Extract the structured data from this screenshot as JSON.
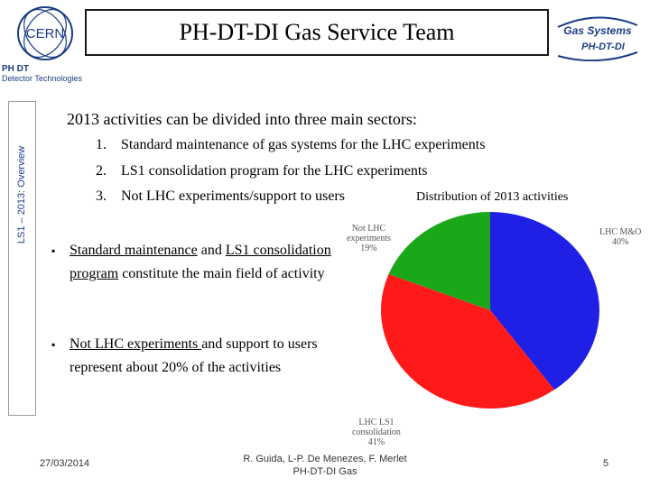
{
  "header": {
    "title": "PH-DT-DI Gas Service Team",
    "cern_logo_text": "CERN",
    "cern_sub_line1": "PH DT",
    "cern_sub_line2": "Detector Technologies",
    "gas_logo_line1": "Gas Systems",
    "gas_logo_line2": "PH-DT-DI"
  },
  "sidebar": {
    "label": "LS1 – 2013: Overview"
  },
  "content": {
    "intro": "2013 activities can be divided into three main sectors:",
    "numbered": [
      {
        "num": "1.",
        "text": "Standard maintenance of gas systems for the LHC experiments"
      },
      {
        "num": "2.",
        "text": "LS1 consolidation program for the LHC experiments"
      },
      {
        "num": "3.",
        "text": "Not LHC experiments/support to users"
      }
    ],
    "bullet1": {
      "part1": "Standard maintenance",
      "part2": " and ",
      "part3": "LS1 consolidation program",
      "part4": " constitute the main field of activity"
    },
    "bullet2": {
      "part1": "Not LHC experiments ",
      "part2": "and support to users represent about 20% of the activities"
    },
    "bullet_symbol": "▪"
  },
  "chart_data": {
    "type": "pie",
    "title": "Distribution of 2013 activities",
    "slices": [
      {
        "label_lines": [
          "LHC M&O",
          "40%"
        ],
        "value": 40,
        "color": "#1f1fe6"
      },
      {
        "label_lines": [
          "LHC LS1",
          "consolidation",
          "41%"
        ],
        "value": 41,
        "color": "#ff1a1a"
      },
      {
        "label_lines": [
          "Not LHC",
          "experiments",
          "19%"
        ],
        "value": 19,
        "color": "#1aa81a"
      }
    ]
  },
  "footer": {
    "date": "27/03/2014",
    "authors_line1": "R. Guida, L-P. De Menezes, F. Merlet",
    "authors_line2": "PH-DT-DI Gas",
    "page": "5"
  }
}
